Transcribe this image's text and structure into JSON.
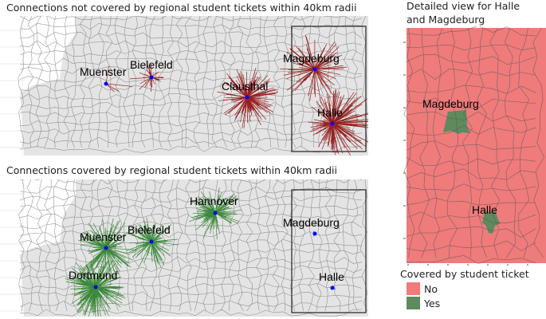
{
  "panels": {
    "not_covered": {
      "title": "Connections not covered by regional student tickets within 40km radii",
      "cities": [
        "Muenster",
        "Bielefeld",
        "Clausthal",
        "Magdeburg",
        "Halle"
      ]
    },
    "covered": {
      "title": "Connections covered by regional student tickets within 40km radii",
      "cities": [
        "Hannover",
        "Muenster",
        "Bielefeld",
        "Dortmund",
        "Magdeburg",
        "Halle"
      ]
    },
    "detail": {
      "title_line1": "Detailed view for Halle",
      "title_line2": "and Magdeburg",
      "cities": [
        "Magdeburg",
        "Halle"
      ]
    }
  },
  "legend": {
    "title": "Covered by student ticket",
    "items": [
      {
        "label": "No",
        "color": "#ef7b7b"
      },
      {
        "label": "Yes",
        "color": "#5e8a5e"
      }
    ]
  },
  "colors": {
    "not_covered_line": "#8b0000",
    "covered_line": "#1f7a1f",
    "city_point": "#0000ff",
    "map_fill": "#e4e4e4",
    "border": "#555555"
  }
}
